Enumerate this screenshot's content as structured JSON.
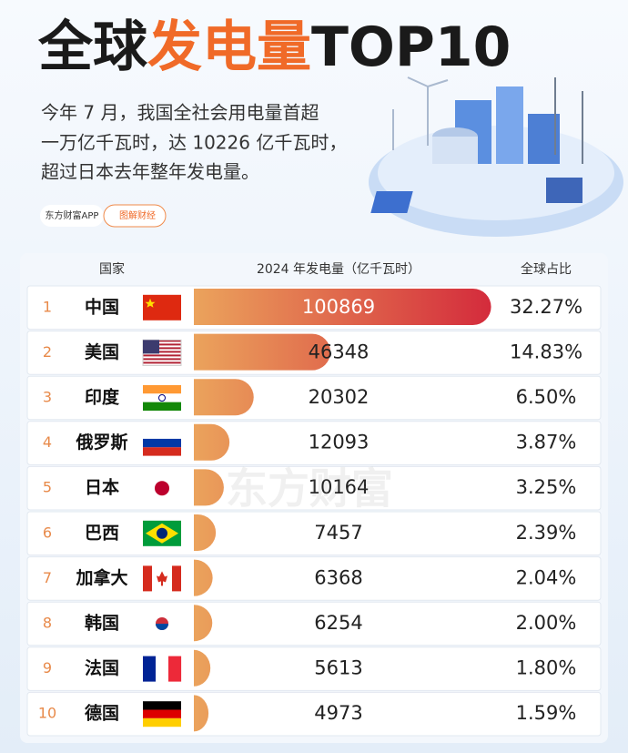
{
  "header": {
    "title_parts": [
      "全球",
      "发电量",
      "TOP10"
    ],
    "intro_lines": [
      "今年 7 月，我国全社会用电量首超",
      "一万亿千瓦时，达 10226 亿千瓦时，",
      "超过日本去年整年发电量。"
    ],
    "brand": "东方财富APP",
    "tag": "图解财经"
  },
  "chart_data": {
    "type": "bar",
    "orientation": "horizontal",
    "columns": [
      "国家",
      "2024 年发电量（亿千瓦时）",
      "全球占比"
    ],
    "ranks": [
      "1",
      "2",
      "3",
      "4",
      "5",
      "6",
      "7",
      "8",
      "9",
      "10"
    ],
    "categories": [
      "中国",
      "美国",
      "印度",
      "俄罗斯",
      "日本",
      "巴西",
      "加拿大",
      "韩国",
      "法国",
      "德国"
    ],
    "values": [
      100869,
      46348,
      20302,
      12093,
      10164,
      7457,
      6368,
      6254,
      5613,
      4973
    ],
    "shares": [
      "32.27%",
      "14.83%",
      "6.50%",
      "3.87%",
      "3.25%",
      "2.39%",
      "2.04%",
      "2.00%",
      "1.80%",
      "1.59%"
    ],
    "xlim": [
      0,
      101000
    ],
    "colors": [
      "#eba35c",
      "#d42c3c"
    ]
  },
  "watermark": "东方财富"
}
